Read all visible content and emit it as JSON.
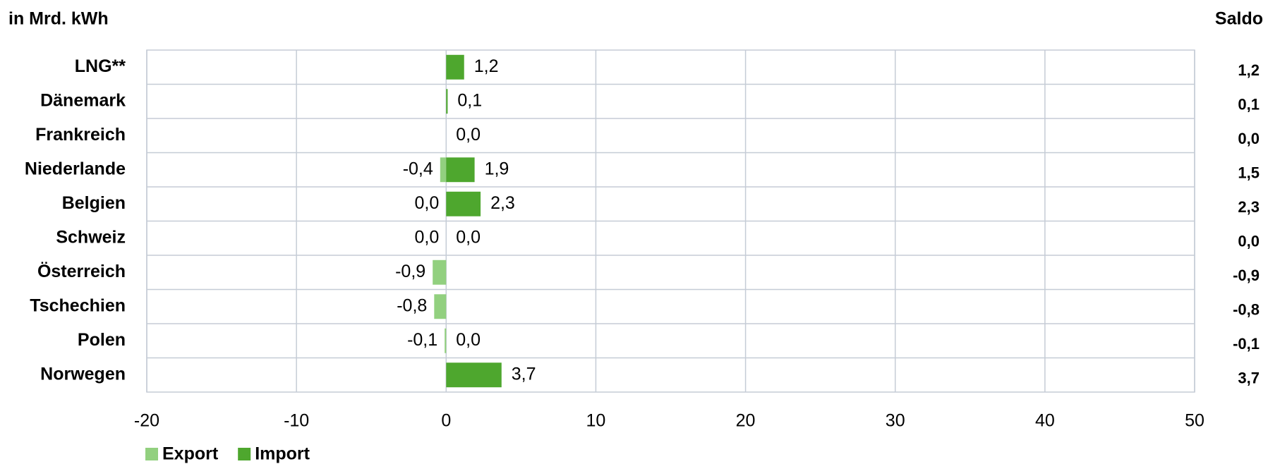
{
  "chart_data": {
    "type": "bar",
    "orientation": "horizontal",
    "title": "in Mrd. kWh",
    "categories": [
      "LNG**",
      "Dänemark",
      "Frankreich",
      "Niederlande",
      "Belgien",
      "Schweiz",
      "Österreich",
      "Tschechien",
      "Polen",
      "Norwegen"
    ],
    "series": [
      {
        "name": "Export",
        "color": "#92d07f",
        "values": [
          null,
          null,
          null,
          -0.4,
          0.0,
          0.0,
          -0.9,
          -0.8,
          -0.1,
          null
        ],
        "value_labels": [
          null,
          null,
          null,
          "-0,4",
          "0,0",
          "0,0",
          "-0,9",
          "-0,8",
          "-0,1",
          null
        ]
      },
      {
        "name": "Import",
        "color": "#4ea72e",
        "values": [
          1.2,
          0.1,
          0.0,
          1.9,
          2.3,
          0.0,
          null,
          null,
          0.0,
          3.7
        ],
        "value_labels": [
          "1,2",
          "0,1",
          "0,0",
          "1,9",
          "2,3",
          "0,0",
          null,
          null,
          "0,0",
          "3,7"
        ]
      }
    ],
    "saldo": {
      "title": "Saldo",
      "values": [
        1.2,
        0.1,
        0.0,
        1.5,
        2.3,
        0.0,
        -0.9,
        -0.8,
        -0.1,
        3.7
      ],
      "value_labels": [
        "1,2",
        "0,1",
        "0,0",
        "1,5",
        "2,3",
        "0,0",
        "-0,9",
        "-0,8",
        "-0,1",
        "3,7"
      ]
    },
    "xlim": [
      -20,
      50
    ],
    "xticks": [
      -20,
      -10,
      0,
      10,
      20,
      30,
      40,
      50
    ],
    "grid": true,
    "legend": "bottom-left"
  }
}
